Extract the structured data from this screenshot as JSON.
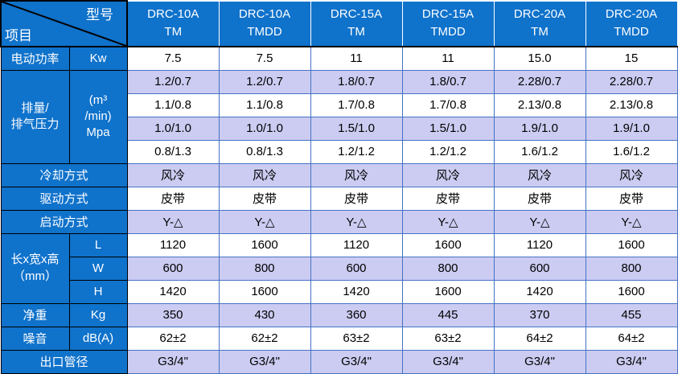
{
  "colors": {
    "header_blue": "#0f72cb",
    "lavender": "#ccccf2",
    "grid_blue": "#4472c4",
    "border_black": "#000000",
    "header_text": "#ffffff",
    "data_text": "#000000"
  },
  "corner": {
    "top_right_label": "型号",
    "bottom_left_label": "项目"
  },
  "columns": [
    {
      "model": "DRC-10A",
      "variant": "TM"
    },
    {
      "model": "DRC-10A",
      "variant": "TMDD"
    },
    {
      "model": "DRC-15A",
      "variant": "TM"
    },
    {
      "model": "DRC-15A",
      "variant": "TMDD"
    },
    {
      "model": "DRC-20A",
      "variant": "TM"
    },
    {
      "model": "DRC-20A",
      "variant": "TMDD"
    }
  ],
  "rows": [
    {
      "kind": "simple",
      "shade": "white",
      "label": "电动功率",
      "unit": "Kw",
      "values": [
        "7.5",
        "7.5",
        "11",
        "11",
        "15.0",
        "15"
      ]
    },
    {
      "kind": "group-start",
      "shade": "lavender",
      "label_lines": [
        "排量/",
        "排气压力"
      ],
      "label_rowspan": 4,
      "unit_lines": [
        "(m³",
        "/min)",
        "Mpa"
      ],
      "unit_rowspan": 4,
      "values": [
        "1.2/0.7",
        "1.2/0.7",
        "1.8/0.7",
        "1.8/0.7",
        "2.28/0.7",
        "2.28/0.7"
      ]
    },
    {
      "kind": "continuation",
      "shade": "white",
      "values": [
        "1.1/0.8",
        "1.1/0.8",
        "1.7/0.8",
        "1.7/0.8",
        "2.13/0.8",
        "2.13/0.8"
      ]
    },
    {
      "kind": "continuation",
      "shade": "lavender",
      "values": [
        "1.0/1.0",
        "1.0/1.0",
        "1.5/1.0",
        "1.5/1.0",
        "1.9/1.0",
        "1.9/1.0"
      ]
    },
    {
      "kind": "continuation",
      "shade": "white",
      "values": [
        "0.8/1.3",
        "0.8/1.3",
        "1.2/1.2",
        "1.2/1.2",
        "1.6/1.2",
        "1.6/1.2"
      ]
    },
    {
      "kind": "full-label",
      "shade": "lavender",
      "label": "冷却方式",
      "values": [
        "风冷",
        "风冷",
        "风冷",
        "风冷",
        "风冷",
        "风冷"
      ]
    },
    {
      "kind": "full-label",
      "shade": "white",
      "label": "驱动方式",
      "values": [
        "皮带",
        "皮带",
        "皮带",
        "皮带",
        "皮带",
        "皮带"
      ]
    },
    {
      "kind": "full-label",
      "shade": "lavender",
      "label": "启动方式",
      "values": [
        "Y-△",
        "Y-△",
        "Y-△",
        "Y-△",
        "Y-△",
        "Y-△"
      ]
    },
    {
      "kind": "group-start",
      "shade": "white",
      "label_lines": [
        "长x宽x高",
        "（mm）"
      ],
      "label_rowspan": 3,
      "unit": "L",
      "values": [
        "1120",
        "1600",
        "1120",
        "1600",
        "1120",
        "1600"
      ]
    },
    {
      "kind": "continuation-unit",
      "shade": "lavender",
      "unit": "W",
      "values": [
        "600",
        "800",
        "600",
        "800",
        "600",
        "800"
      ]
    },
    {
      "kind": "continuation-unit",
      "shade": "white",
      "unit": "H",
      "values": [
        "1420",
        "1600",
        "1420",
        "1600",
        "1420",
        "1600"
      ]
    },
    {
      "kind": "simple",
      "shade": "lavender",
      "label": "净重",
      "unit": "Kg",
      "values": [
        "350",
        "430",
        "360",
        "445",
        "370",
        "455"
      ]
    },
    {
      "kind": "simple",
      "shade": "white",
      "label": "噪音",
      "unit": "dB(A)",
      "values": [
        "62±2",
        "62±2",
        "63±2",
        "63±2",
        "64±2",
        "64±2"
      ]
    },
    {
      "kind": "full-label",
      "shade": "lavender",
      "label": "出口管径",
      "values": [
        "G3/4\"",
        "G3/4\"",
        "G3/4\"",
        "G3/4\"",
        "G3/4\"",
        "G3/4\""
      ]
    }
  ]
}
